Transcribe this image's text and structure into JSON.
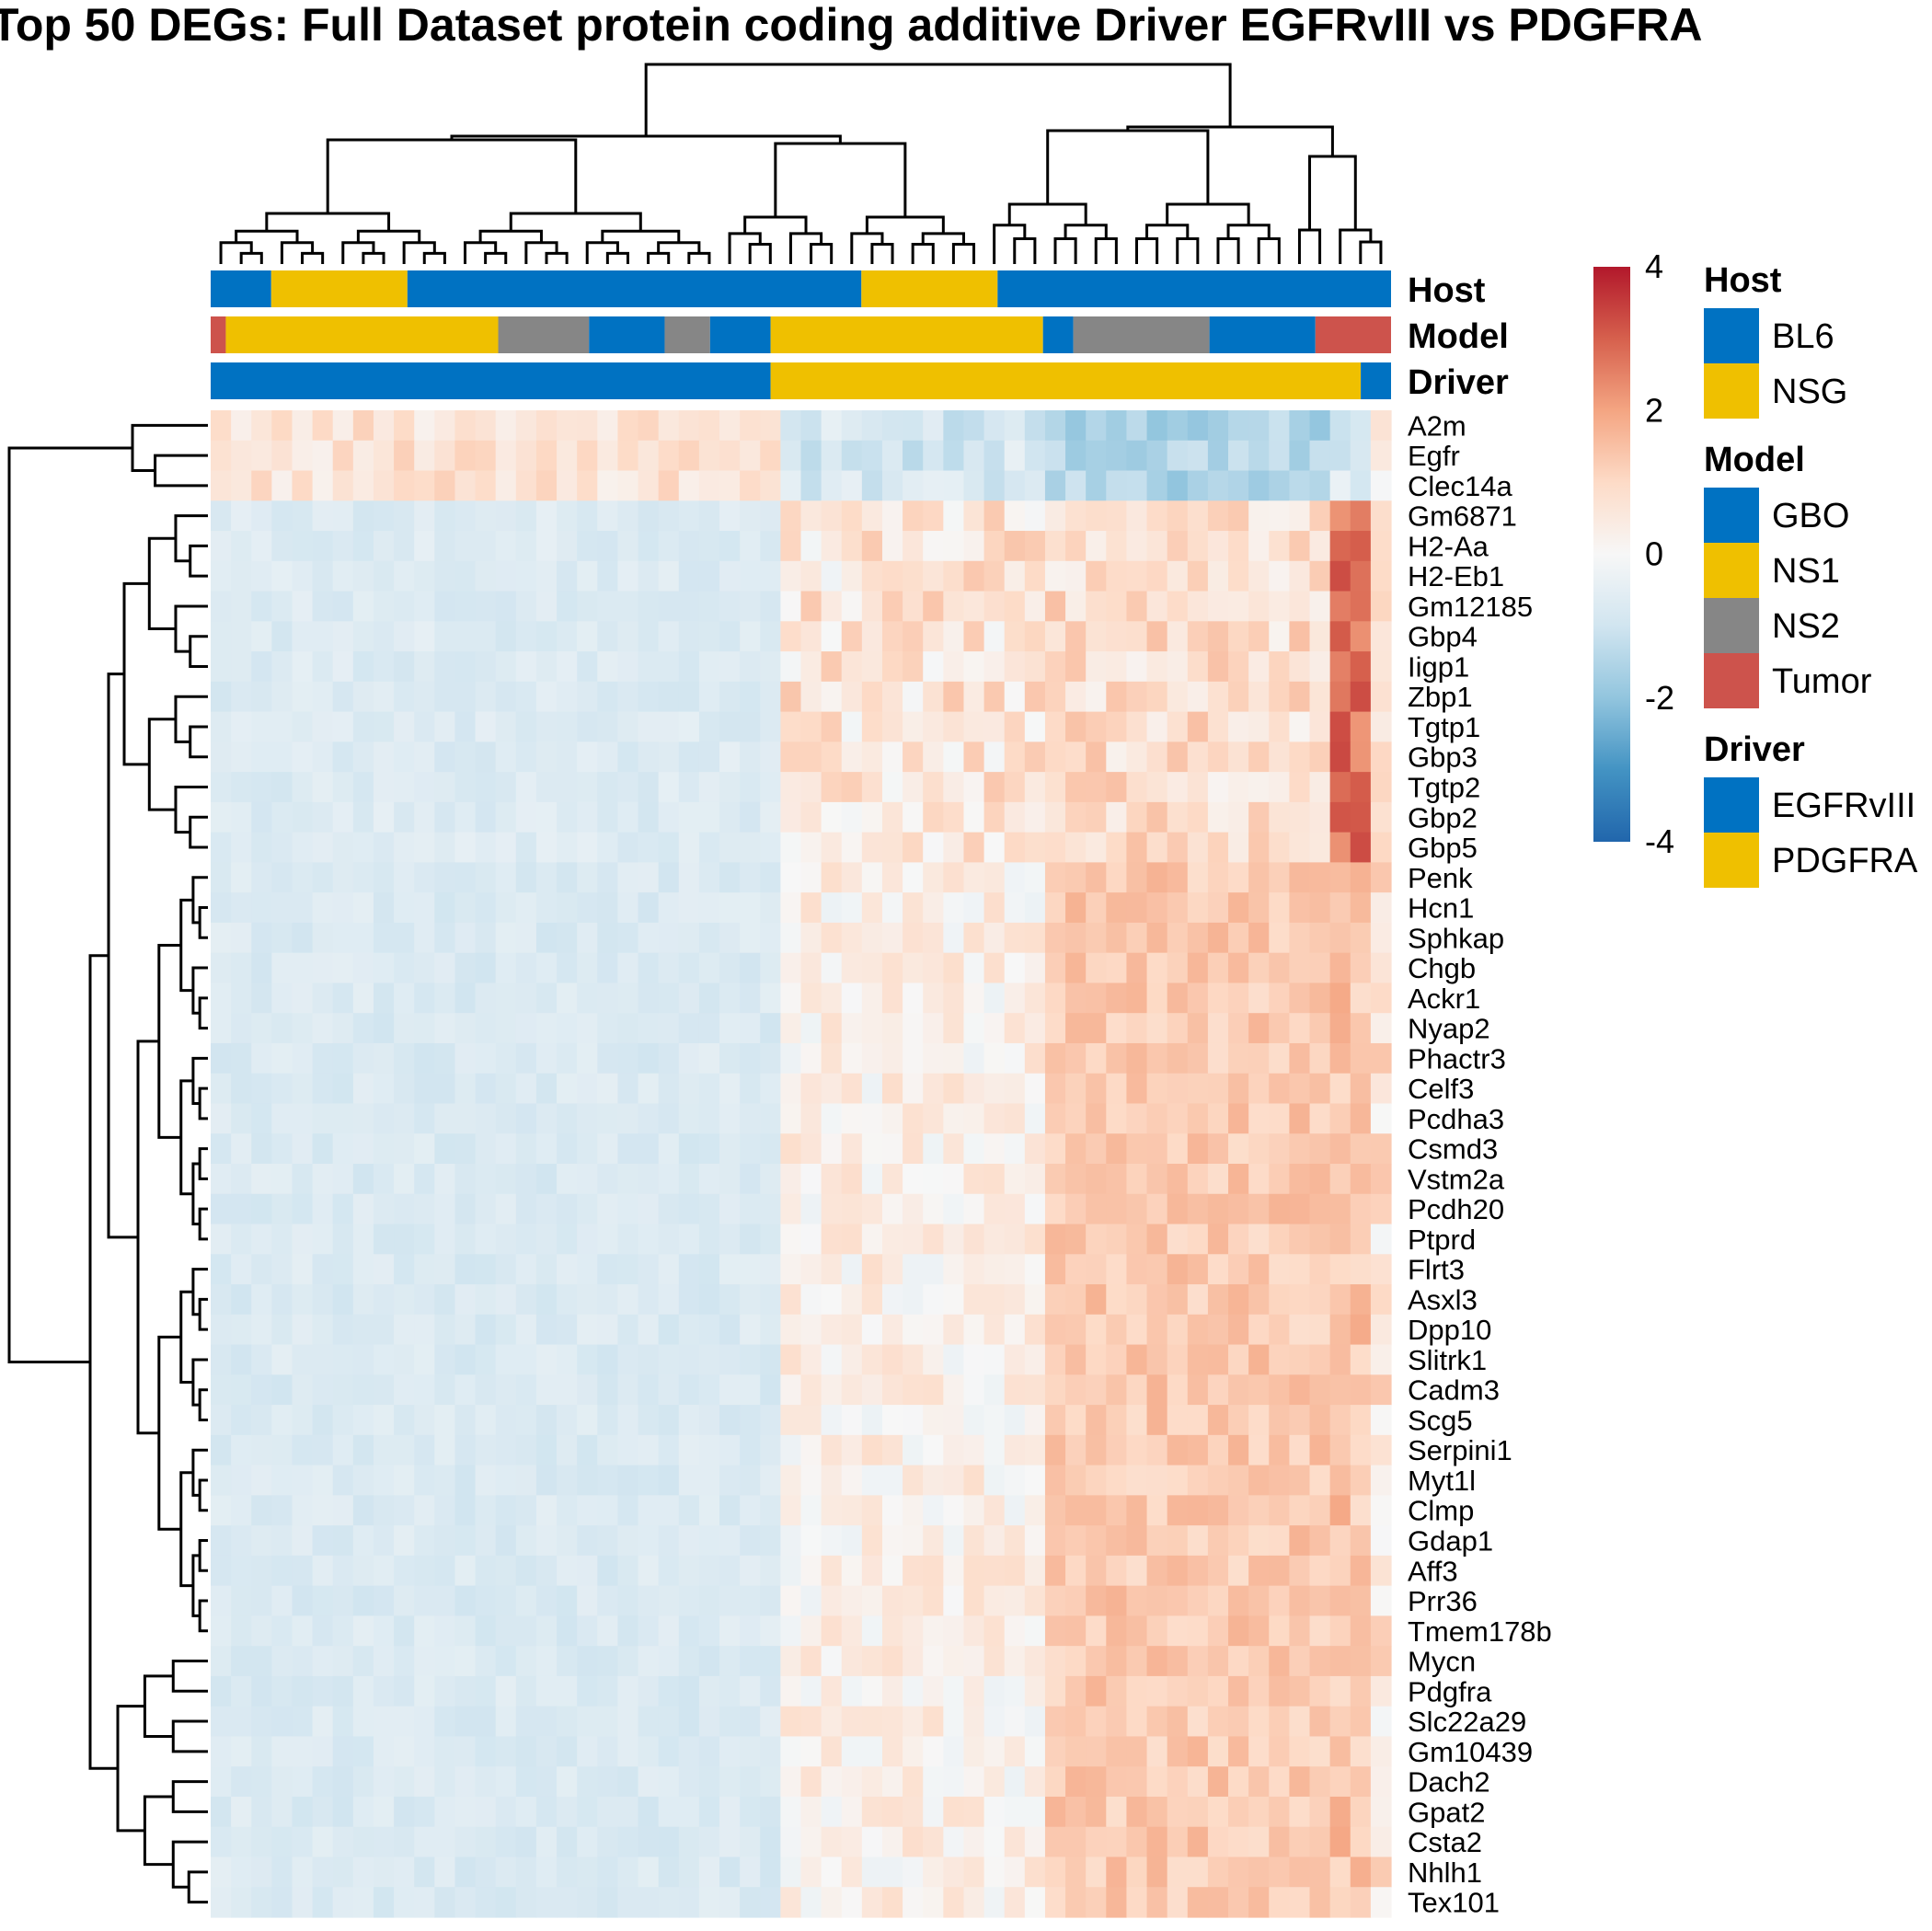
{
  "chart_data": {
    "type": "heatmap",
    "title": "Top 50 DEGs: Full Dataset protein coding additive Driver EGFRvIII vs PDGFRA",
    "genes": [
      "A2m",
      "Egfr",
      "Clec14a",
      "Gm6871",
      "H2-Aa",
      "H2-Eb1",
      "Gm12185",
      "Gbp4",
      "Iigp1",
      "Zbp1",
      "Tgtp1",
      "Gbp3",
      "Tgtp2",
      "Gbp2",
      "Gbp5",
      "Penk",
      "Hcn1",
      "Sphkap",
      "Chgb",
      "Ackr1",
      "Nyap2",
      "Phactr3",
      "Celf3",
      "Pcdha3",
      "Csmd3",
      "Vstm2a",
      "Pcdh20",
      "Ptprd",
      "Flrt3",
      "Asxl3",
      "Dpp10",
      "Slitrk1",
      "Cadm3",
      "Scg5",
      "Serpini1",
      "Myt1l",
      "Clmp",
      "Gdap1",
      "Aff3",
      "Prr36",
      "Tmem178b",
      "Mycn",
      "Pdgfra",
      "Slc22a29",
      "Gm10439",
      "Dach2",
      "Gpat2",
      "Csta2",
      "Nhlh1",
      "Tex101"
    ],
    "n_samples": 58,
    "annotation_tracks": [
      {
        "name": "Host",
        "segments": [
          {
            "label": "BL6",
            "start": 0,
            "end": 4
          },
          {
            "label": "NSG",
            "start": 4,
            "end": 13
          },
          {
            "label": "BL6",
            "start": 13,
            "end": 43
          },
          {
            "label": "NSG",
            "start": 43,
            "end": 52
          },
          {
            "label": "BL6",
            "start": 52,
            "end": 78
          }
        ]
      },
      {
        "name": "Model",
        "segments": [
          {
            "label": "Tumor",
            "start": 0,
            "end": 1
          },
          {
            "label": "NS1",
            "start": 1,
            "end": 19
          },
          {
            "label": "NS2",
            "start": 19,
            "end": 25
          },
          {
            "label": "GBO",
            "start": 25,
            "end": 30
          },
          {
            "label": "NS2",
            "start": 30,
            "end": 33
          },
          {
            "label": "GBO",
            "start": 33,
            "end": 37
          },
          {
            "label": "NS1",
            "start": 37,
            "end": 55
          },
          {
            "label": "GBO",
            "start": 55,
            "end": 57
          },
          {
            "label": "NS2",
            "start": 57,
            "end": 66
          },
          {
            "label": "GBO",
            "start": 66,
            "end": 73
          },
          {
            "label": "Tumor",
            "start": 73,
            "end": 78
          }
        ]
      },
      {
        "name": "Driver",
        "segments": [
          {
            "label": "EGFRvIII",
            "start": 0,
            "end": 37
          },
          {
            "label": "PDGFRA",
            "start": 37,
            "end": 76
          },
          {
            "label": "EGFRvIII",
            "start": 76,
            "end": 78
          }
        ]
      }
    ],
    "annotation_units": 78,
    "color_scale": {
      "min": -4,
      "max": 4,
      "ticks": [
        4,
        2,
        0,
        -2,
        -4
      ],
      "colors": [
        "#2166ac",
        "#4393c3",
        "#92c5de",
        "#d1e5f0",
        "#f7f7f7",
        "#fddbc7",
        "#f4a582",
        "#d6604d",
        "#b2182b"
      ]
    },
    "groups": {
      "egfr_block_end": 37,
      "pdgfra_mid_end": 55,
      "pdgfra_strong_end": 73,
      "tumor_end": 76
    }
  },
  "legend": {
    "groups": [
      {
        "title": "Host",
        "items": [
          {
            "label": "BL6",
            "color": "#0072C2"
          },
          {
            "label": "NSG",
            "color": "#EFC000"
          }
        ]
      },
      {
        "title": "Model",
        "items": [
          {
            "label": "GBO",
            "color": "#0072C2"
          },
          {
            "label": "NS1",
            "color": "#EFC000"
          },
          {
            "label": "NS2",
            "color": "#868686"
          },
          {
            "label": "Tumor",
            "color": "#CD534C"
          }
        ]
      },
      {
        "title": "Driver",
        "items": [
          {
            "label": "EGFRvIII",
            "color": "#0072C2"
          },
          {
            "label": "PDGFRA",
            "color": "#EFC000"
          }
        ]
      }
    ]
  }
}
